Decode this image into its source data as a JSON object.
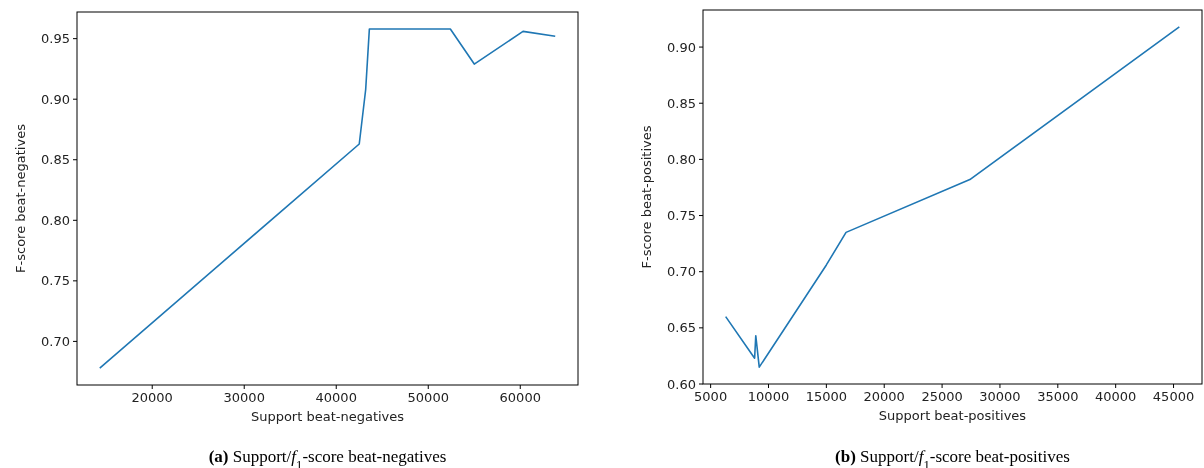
{
  "chart_data": [
    {
      "type": "line",
      "xlabel": "Support beat-negatives",
      "ylabel": "F-score beat-negatives",
      "annotations": [
        "(a) Support/f$_{1}$-score beat-negatives"
      ],
      "xlim": [
        11825,
        66275
      ],
      "ylim": [
        0.664,
        0.972
      ],
      "xticks": [
        20000,
        30000,
        40000,
        50000,
        60000
      ],
      "yticks": [
        {
          "value": 0.7,
          "label": "0.70"
        },
        {
          "value": 0.75,
          "label": "0.75"
        },
        {
          "value": 0.8,
          "label": "0.80"
        },
        {
          "value": 0.85,
          "label": "0.85"
        },
        {
          "value": 0.9,
          "label": "0.90"
        },
        {
          "value": 0.95,
          "label": "0.95"
        }
      ],
      "grid": false,
      "x": [
        14300,
        42500,
        43200,
        43600,
        52400,
        55000,
        60300,
        63800
      ],
      "series": [
        {
          "color": "#1f77b4",
          "values": [
            0.678,
            0.863,
            0.908,
            0.958,
            0.958,
            0.929,
            0.956,
            0.952
          ]
        }
      ]
    },
    {
      "type": "line",
      "xlabel": "Support beat-positives",
      "ylabel": "F-score beat-positives",
      "annotations": [
        "(b) Support/f$_{1}$-score beat-positives"
      ],
      "xlim": [
        4340,
        47460
      ],
      "ylim": [
        0.6,
        0.933
      ],
      "xticks": [
        5000,
        10000,
        15000,
        20000,
        25000,
        30000,
        35000,
        40000,
        45000
      ],
      "yticks": [
        {
          "value": 0.6,
          "label": "0.60"
        },
        {
          "value": 0.65,
          "label": "0.65"
        },
        {
          "value": 0.7,
          "label": "0.70"
        },
        {
          "value": 0.75,
          "label": "0.75"
        },
        {
          "value": 0.8,
          "label": "0.80"
        },
        {
          "value": 0.85,
          "label": "0.85"
        },
        {
          "value": 0.9,
          "label": "0.90"
        }
      ],
      "grid": false,
      "x": [
        6300,
        8800,
        8900,
        9200,
        15000,
        16700,
        27400,
        45500
      ],
      "series": [
        {
          "color": "#1f77b4",
          "values": [
            0.66,
            0.623,
            0.643,
            0.615,
            0.706,
            0.735,
            0.782,
            0.918
          ]
        }
      ]
    }
  ]
}
